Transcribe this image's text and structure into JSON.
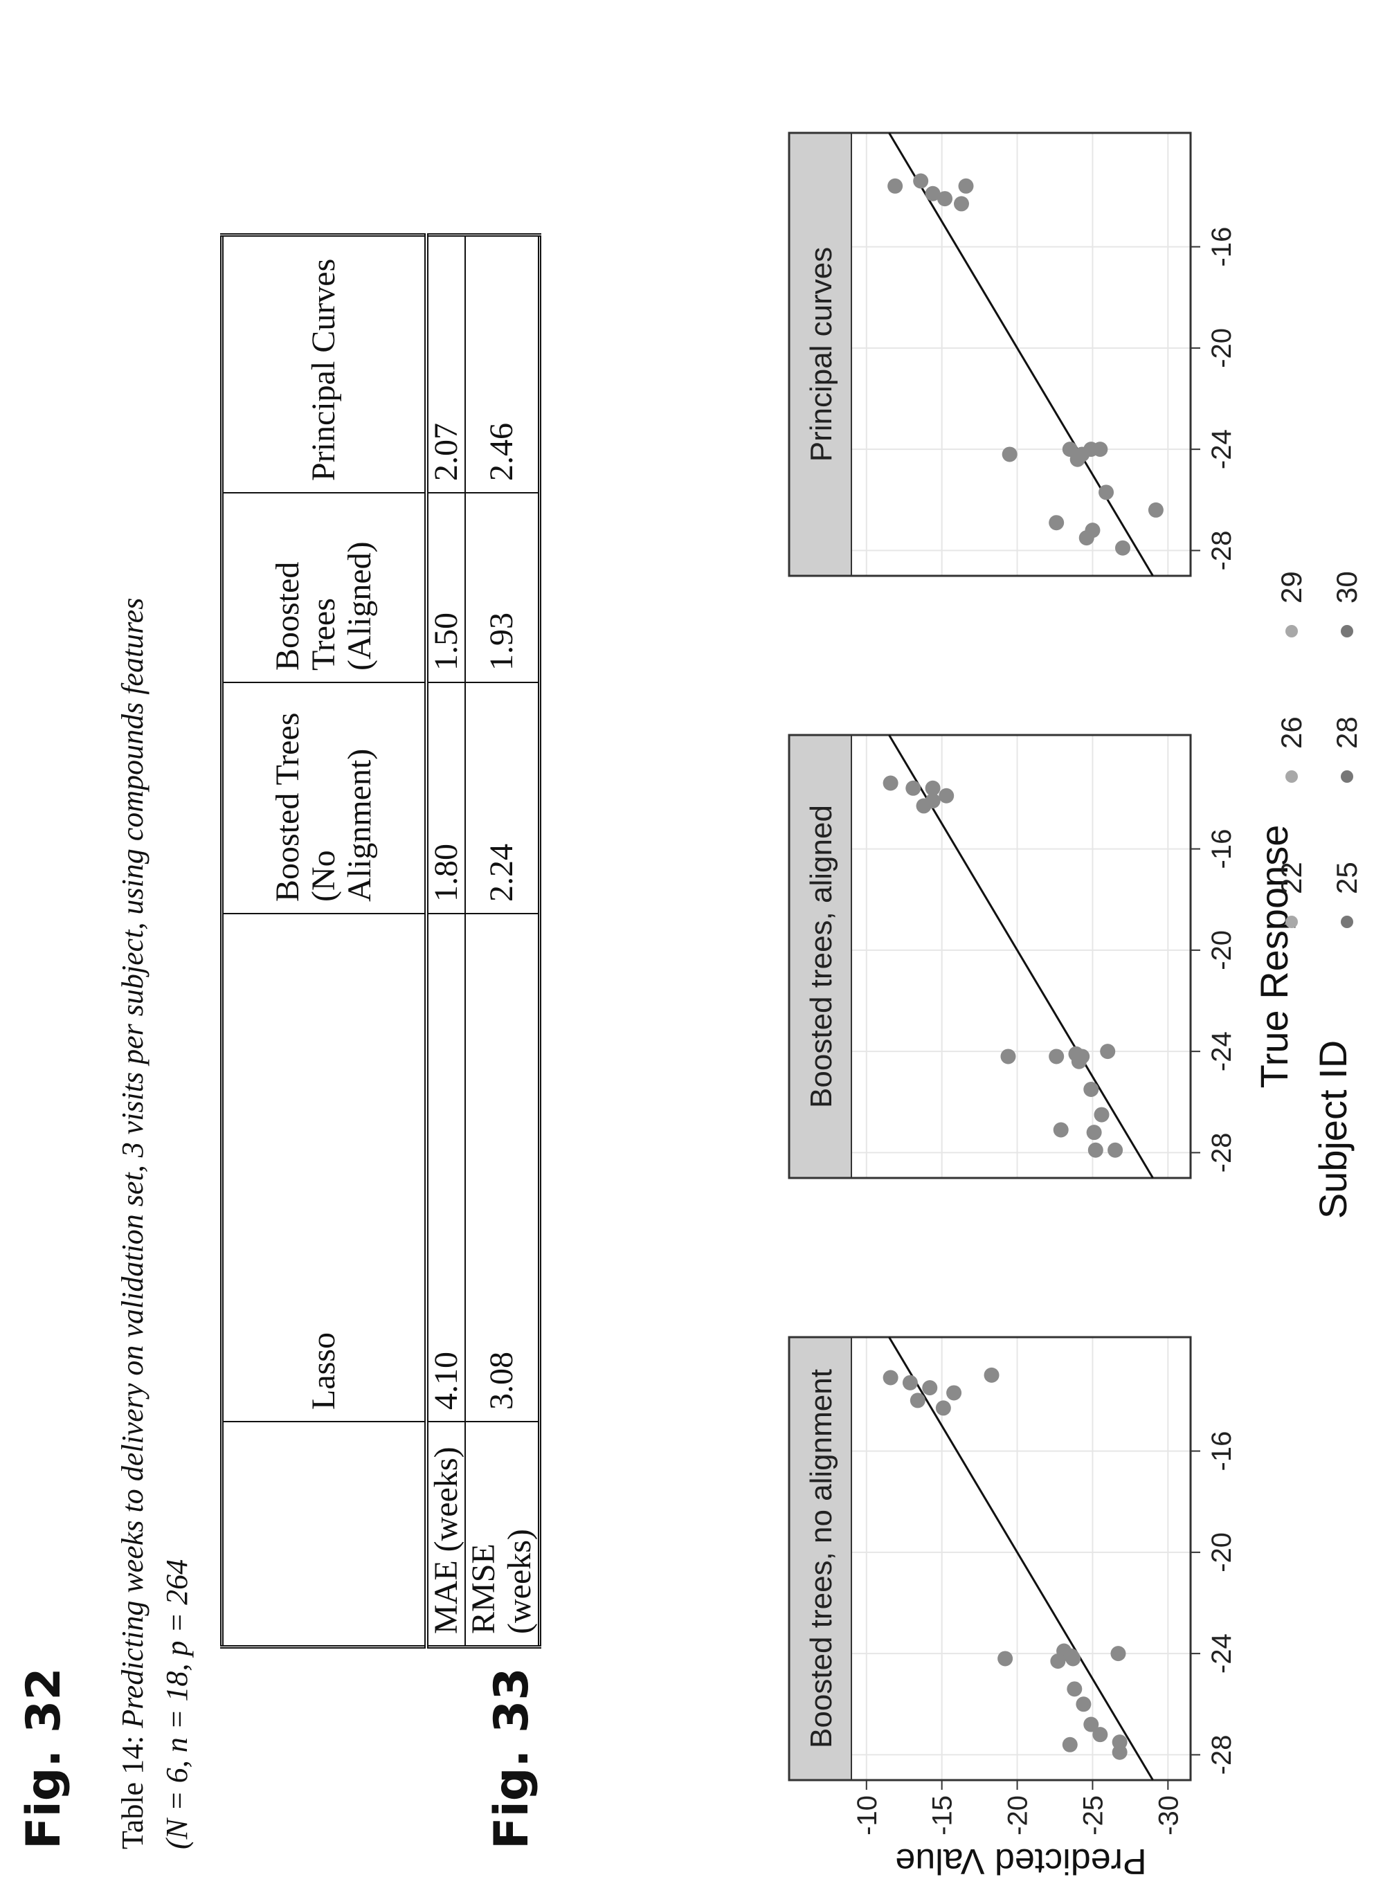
{
  "fig32_label": "Fig. 32",
  "fig33_label": "Fig. 33",
  "caption": {
    "prefix": "Table 14:",
    "text": "Predicting weeks to delivery on validation set, 3 visits per subject, using compounds features",
    "params": "(N = 6, n = 18, p = 264"
  },
  "table": {
    "headers": [
      "",
      "Lasso",
      "Boosted Trees (No Alignment)",
      "Boosted Trees (Aligned)",
      "Principal Curves"
    ],
    "rows": [
      [
        "MAE (weeks)",
        "4.10",
        "1.80",
        "1.50",
        "2.07"
      ],
      [
        "RMSE (weeks)",
        "3.08",
        "2.24",
        "1.93",
        "2.46"
      ]
    ]
  },
  "chart_data": {
    "type": "scatter",
    "xlabel": "True Response",
    "ylabel": "Predicted Value",
    "xlim": [
      -29,
      -11.5
    ],
    "ylim": [
      -31.5,
      -9
    ],
    "xticks": [
      "-28",
      "-24",
      "-20",
      "-16"
    ],
    "yticks": [
      "-10",
      "-15",
      "-20",
      "-25",
      "-30"
    ],
    "reference_line": "y = x",
    "legend": {
      "title": "Subject ID",
      "entries": [
        "22",
        "26",
        "29",
        "25",
        "28",
        "30"
      ],
      "placement": "bottom"
    },
    "panels": [
      {
        "title": "Boosted trees, no alignment",
        "points": [
          [
            -27.9,
            -26.8
          ],
          [
            -27.5,
            -26.8
          ],
          [
            -27.2,
            -25.5
          ],
          [
            -26.8,
            -24.9
          ],
          [
            -27.6,
            -23.5
          ],
          [
            -26,
            -24.4
          ],
          [
            -25.4,
            -23.8
          ],
          [
            -24.2,
            -23.7
          ],
          [
            -24.1,
            -23.6
          ],
          [
            -23.9,
            -23.1
          ],
          [
            -24,
            -26.7
          ],
          [
            -24.3,
            -22.7
          ],
          [
            -24.2,
            -19.2
          ],
          [
            -13.1,
            -11.6
          ],
          [
            -13.7,
            -15.8
          ],
          [
            -14,
            -13.4
          ],
          [
            -14.3,
            -15.1
          ],
          [
            -13.5,
            -14.2
          ],
          [
            -13.3,
            -12.9
          ],
          [
            -13,
            -18.3
          ]
        ]
      },
      {
        "title": "Boosted trees, aligned",
        "points": [
          [
            -27.9,
            -25.2
          ],
          [
            -27.9,
            -26.5
          ],
          [
            -27.2,
            -25.1
          ],
          [
            -26.5,
            -25.6
          ],
          [
            -27.1,
            -22.9
          ],
          [
            -25.5,
            -24.9
          ],
          [
            -24.4,
            -24.1
          ],
          [
            -24.2,
            -24.3
          ],
          [
            -24.1,
            -23.9
          ],
          [
            -24,
            -26
          ],
          [
            -24.2,
            -22.6
          ],
          [
            -24.2,
            -19.4
          ],
          [
            -13.4,
            -11.6
          ],
          [
            -13.6,
            -13.1
          ],
          [
            -14.1,
            -14.4
          ],
          [
            -13.9,
            -15.3
          ],
          [
            -14.3,
            -13.8
          ],
          [
            -13.6,
            -14.4
          ]
        ]
      },
      {
        "title": "Principal curves",
        "points": [
          [
            -27.9,
            -27
          ],
          [
            -27.5,
            -24.6
          ],
          [
            -27.2,
            -25
          ],
          [
            -26.4,
            -29.2
          ],
          [
            -25.7,
            -25.9
          ],
          [
            -26.9,
            -22.6
          ],
          [
            -24.4,
            -24
          ],
          [
            -24.2,
            -24.3
          ],
          [
            -24,
            -23.5
          ],
          [
            -24,
            -24.9
          ],
          [
            -24.2,
            -19.5
          ],
          [
            -24,
            -25.5
          ],
          [
            -13.6,
            -11.9
          ],
          [
            -13.9,
            -14.4
          ],
          [
            -14.1,
            -15.2
          ],
          [
            -14.3,
            -16.3
          ],
          [
            -13.4,
            -13.6
          ],
          [
            -13.6,
            -16.6
          ]
        ]
      }
    ]
  }
}
